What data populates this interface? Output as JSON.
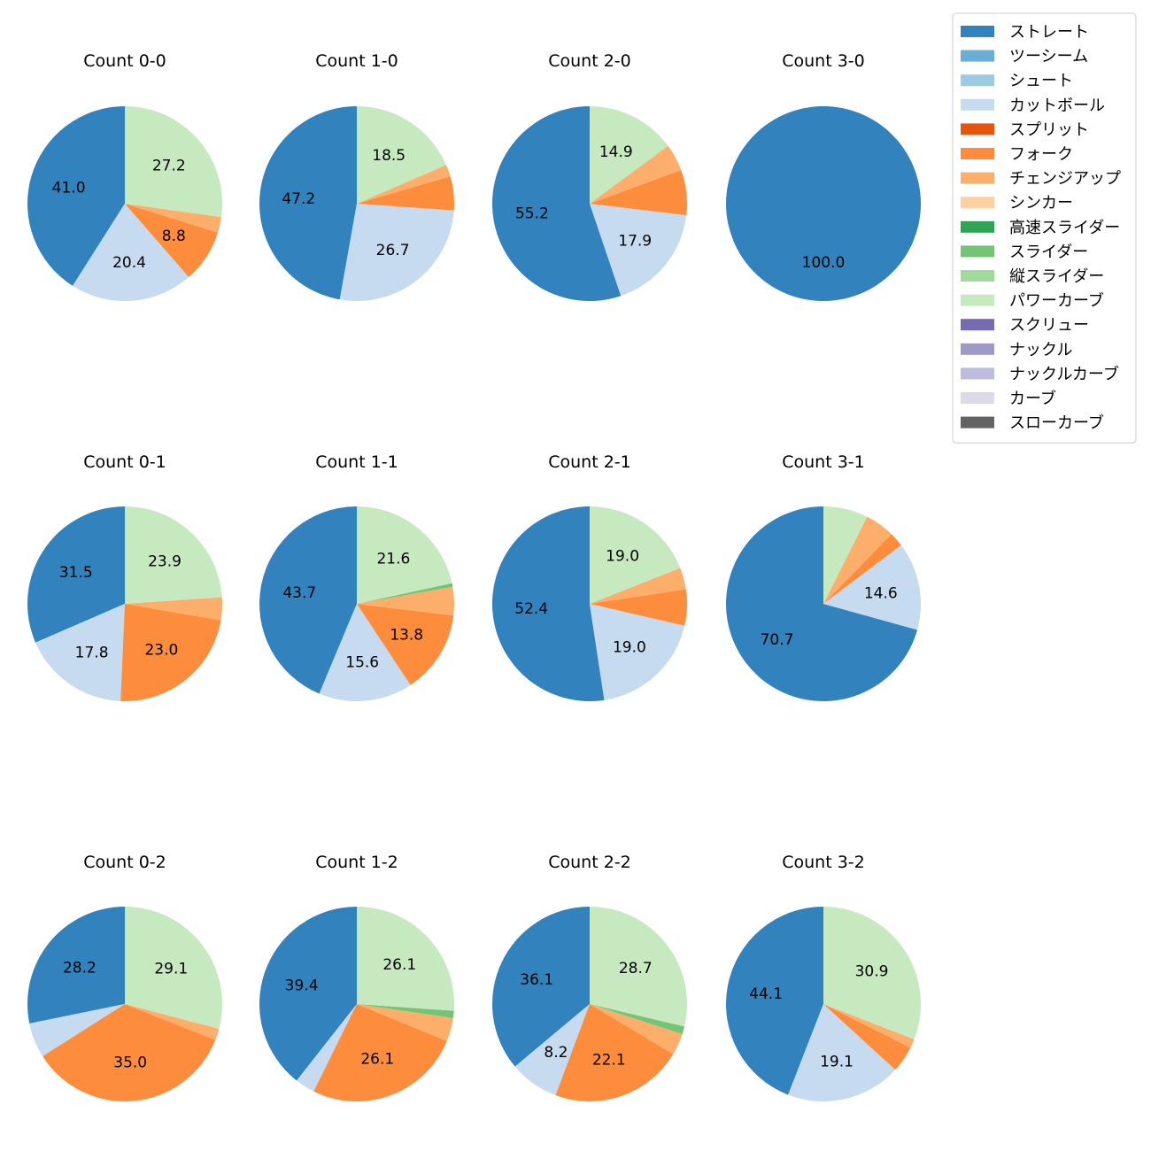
{
  "chart_data": {
    "type": "pie",
    "title": "",
    "legend_position": "top-right",
    "pitch_types": [
      {
        "name": "ストレート",
        "color": "#3182bd"
      },
      {
        "name": "ツーシーム",
        "color": "#6baed6"
      },
      {
        "name": "シュート",
        "color": "#9ecae1"
      },
      {
        "name": "カットボール",
        "color": "#c6dbef"
      },
      {
        "name": "スプリット",
        "color": "#e6550d"
      },
      {
        "name": "フォーク",
        "color": "#fd8d3c"
      },
      {
        "name": "チェンジアップ",
        "color": "#fdae6b"
      },
      {
        "name": "シンカー",
        "color": "#fdd0a2"
      },
      {
        "name": "高速スライダー",
        "color": "#31a354"
      },
      {
        "name": "スライダー",
        "color": "#74c476"
      },
      {
        "name": "縦スライダー",
        "color": "#a1d99b"
      },
      {
        "name": "パワーカーブ",
        "color": "#c7e9c0"
      },
      {
        "name": "スクリュー",
        "color": "#756bb1"
      },
      {
        "name": "ナックル",
        "color": "#9e9ac8"
      },
      {
        "name": "ナックルカーブ",
        "color": "#bcbddc"
      },
      {
        "name": "カーブ",
        "color": "#dadaeb"
      },
      {
        "name": "スローカーブ",
        "color": "#636363"
      }
    ],
    "pies": [
      {
        "title": "Count 0-0",
        "slices": [
          {
            "type": "ストレート",
            "value": 41.0
          },
          {
            "type": "カットボール",
            "value": 20.4
          },
          {
            "type": "フォーク",
            "value": 8.8
          },
          {
            "type": "チェンジアップ",
            "value": 2.6
          },
          {
            "type": "パワーカーブ",
            "value": 27.2
          }
        ]
      },
      {
        "title": "Count 1-0",
        "slices": [
          {
            "type": "ストレート",
            "value": 47.2
          },
          {
            "type": "カットボール",
            "value": 26.7
          },
          {
            "type": "フォーク",
            "value": 5.6
          },
          {
            "type": "チェンジアップ",
            "value": 2.0
          },
          {
            "type": "パワーカーブ",
            "value": 18.5
          }
        ]
      },
      {
        "title": "Count 2-0",
        "slices": [
          {
            "type": "ストレート",
            "value": 55.2
          },
          {
            "type": "カットボール",
            "value": 17.9
          },
          {
            "type": "フォーク",
            "value": 7.5
          },
          {
            "type": "チェンジアップ",
            "value": 4.5
          },
          {
            "type": "パワーカーブ",
            "value": 14.9
          }
        ]
      },
      {
        "title": "Count 3-0",
        "slices": [
          {
            "type": "ストレート",
            "value": 100.0
          }
        ]
      },
      {
        "title": "Count 0-1",
        "slices": [
          {
            "type": "ストレート",
            "value": 31.5
          },
          {
            "type": "カットボール",
            "value": 17.8
          },
          {
            "type": "フォーク",
            "value": 23.0
          },
          {
            "type": "チェンジアップ",
            "value": 3.8
          },
          {
            "type": "パワーカーブ",
            "value": 23.9
          }
        ]
      },
      {
        "title": "Count 1-1",
        "slices": [
          {
            "type": "ストレート",
            "value": 43.7
          },
          {
            "type": "カットボール",
            "value": 15.6
          },
          {
            "type": "フォーク",
            "value": 13.8
          },
          {
            "type": "チェンジアップ",
            "value": 4.7
          },
          {
            "type": "スライダー",
            "value": 0.6
          },
          {
            "type": "パワーカーブ",
            "value": 21.6
          }
        ]
      },
      {
        "title": "Count 2-1",
        "slices": [
          {
            "type": "ストレート",
            "value": 52.4
          },
          {
            "type": "カットボール",
            "value": 19.0
          },
          {
            "type": "フォーク",
            "value": 6.0
          },
          {
            "type": "チェンジアップ",
            "value": 3.6
          },
          {
            "type": "パワーカーブ",
            "value": 19.0
          }
        ]
      },
      {
        "title": "Count 3-1",
        "slices": [
          {
            "type": "ストレート",
            "value": 70.7
          },
          {
            "type": "カットボール",
            "value": 14.6
          },
          {
            "type": "フォーク",
            "value": 2.4
          },
          {
            "type": "チェンジアップ",
            "value": 4.9
          },
          {
            "type": "パワーカーブ",
            "value": 7.4
          }
        ]
      },
      {
        "title": "Count 0-2",
        "slices": [
          {
            "type": "ストレート",
            "value": 28.2
          },
          {
            "type": "カットボール",
            "value": 5.8
          },
          {
            "type": "フォーク",
            "value": 35.0
          },
          {
            "type": "チェンジアップ",
            "value": 1.9
          },
          {
            "type": "パワーカーブ",
            "value": 29.1
          }
        ]
      },
      {
        "title": "Count 1-2",
        "slices": [
          {
            "type": "ストレート",
            "value": 39.4
          },
          {
            "type": "カットボール",
            "value": 3.3
          },
          {
            "type": "フォーク",
            "value": 26.1
          },
          {
            "type": "チェンジアップ",
            "value": 3.9
          },
          {
            "type": "スライダー",
            "value": 1.2
          },
          {
            "type": "パワーカーブ",
            "value": 26.1
          }
        ]
      },
      {
        "title": "Count 2-2",
        "slices": [
          {
            "type": "ストレート",
            "value": 36.1
          },
          {
            "type": "カットボール",
            "value": 8.2
          },
          {
            "type": "フォーク",
            "value": 22.1
          },
          {
            "type": "チェンジアップ",
            "value": 3.6
          },
          {
            "type": "スライダー",
            "value": 1.3
          },
          {
            "type": "パワーカーブ",
            "value": 28.7
          }
        ]
      },
      {
        "title": "Count 3-2",
        "slices": [
          {
            "type": "ストレート",
            "value": 44.1
          },
          {
            "type": "カットボール",
            "value": 19.1
          },
          {
            "type": "フォーク",
            "value": 4.4
          },
          {
            "type": "チェンジアップ",
            "value": 1.5
          },
          {
            "type": "パワーカーブ",
            "value": 30.9
          }
        ]
      }
    ]
  }
}
